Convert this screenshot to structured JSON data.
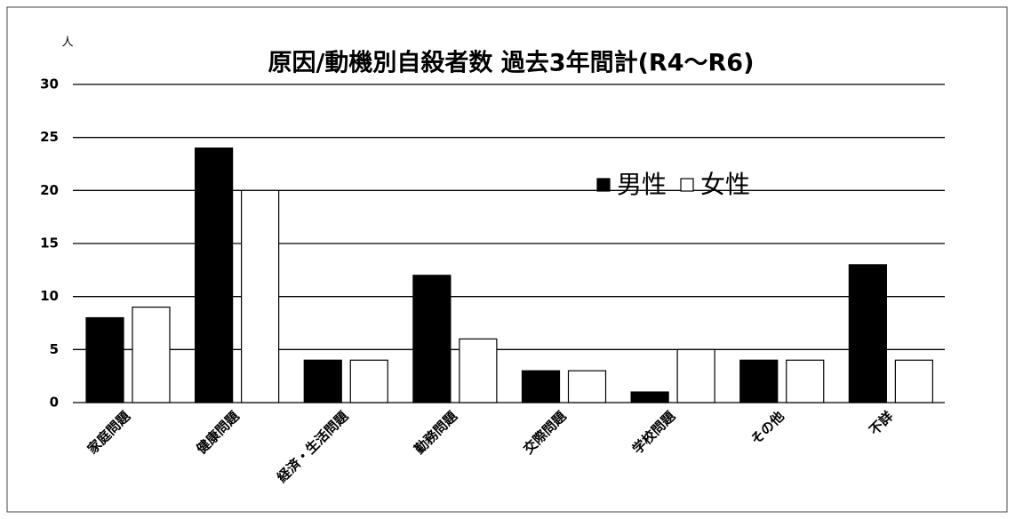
{
  "chart_data": {
    "type": "bar",
    "title": "原因/動機別自殺者数 過去3年間計(R4～R6)",
    "y_axis_label": "人",
    "categories": [
      "家庭問題",
      "健康問題",
      "経済・生活問題",
      "勤務問題",
      "交際問題",
      "学校問題",
      "その他",
      "不詳"
    ],
    "series": [
      {
        "name": "男性",
        "color": "#000000",
        "values": [
          8,
          24,
          4,
          12,
          3,
          1,
          4,
          13
        ]
      },
      {
        "name": "女性",
        "color": "#ffffff",
        "values": [
          9,
          20,
          4,
          6,
          3,
          5,
          4,
          4
        ]
      }
    ],
    "ylim": [
      0,
      30
    ],
    "yticks": [
      0,
      5,
      10,
      15,
      20,
      25,
      30
    ],
    "grid": true,
    "legend": "upper-right"
  }
}
